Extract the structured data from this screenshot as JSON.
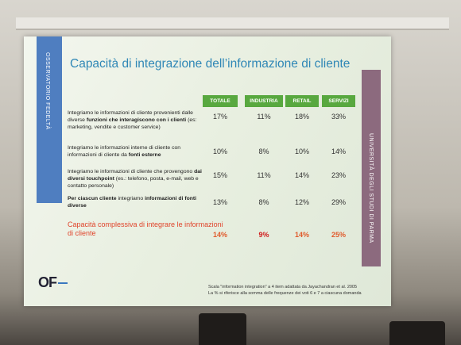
{
  "sidebar_left": "OSSERVATORIO FEDELTÀ",
  "title": "Capacità di integrazione dell’informazione di cliente",
  "sidebar_right": "UNIVERSITÀ DEGLI STUDI DI PARMA",
  "table": {
    "header": [
      "TOTALE",
      "INDUSTRIA",
      "RETAIL",
      "SERVIZI"
    ],
    "rows": [
      {
        "label": [
          {
            "text": "Integriamo le informazioni di cliente provenienti dalle diverse ",
            "bold": false
          },
          {
            "text": "funzioni che interagiscono con i clienti",
            "bold": true
          },
          {
            "text": " (es: marketing, vendite e customer service)",
            "bold": false
          }
        ],
        "values": [
          "17%",
          "11%",
          "18%",
          "33%"
        ]
      },
      {
        "label": [
          {
            "text": "Integriamo le informazioni interne di cliente con informazioni di cliente da ",
            "bold": false
          },
          {
            "text": "fonti esterne",
            "bold": true
          }
        ],
        "values": [
          "10%",
          "8%",
          "10%",
          "14%"
        ]
      },
      {
        "label": [
          {
            "text": "Integriamo le informazioni di cliente che provengono ",
            "bold": false
          },
          {
            "text": "dai diversi touchpoint",
            "bold": true
          },
          {
            "text": " (es.: telefono, posta, e-mail, web e contatto personale)",
            "bold": false
          }
        ],
        "values": [
          "15%",
          "11%",
          "14%",
          "23%"
        ]
      },
      {
        "label": [
          {
            "text": "Per ciascun cliente",
            "bold": true
          },
          {
            "text": " integriamo ",
            "bold": false
          },
          {
            "text": "informazioni di fonti diverse",
            "bold": true
          }
        ],
        "values": [
          "13%",
          "8%",
          "12%",
          "29%"
        ]
      }
    ],
    "summary": {
      "label": "Capacità  complessiva di integrare le informazioni di cliente",
      "values": [
        "14%",
        "9%",
        "14%",
        "25%"
      ]
    }
  },
  "footnotes": [
    "Scala \"information integration\" a 4 item adattata da Jayachandran et al. 2005",
    "La % si riferisce alla somma delle frequenze dei  voti 6 e 7 a ciascuna domanda"
  ],
  "logo": "OF"
}
